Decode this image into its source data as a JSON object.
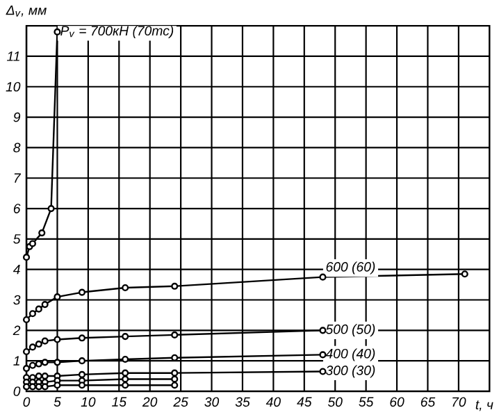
{
  "chart_data": {
    "type": "line",
    "xlabel": "t, ч",
    "ylabel": "Δ$_{v}$, мм",
    "xlim": [
      0,
      75
    ],
    "ylim": [
      0,
      12
    ],
    "xticks": [
      0,
      5,
      10,
      15,
      20,
      25,
      30,
      35,
      40,
      45,
      50,
      55,
      60,
      65,
      70
    ],
    "yticks": [
      0,
      1,
      2,
      3,
      4,
      5,
      6,
      7,
      8,
      9,
      10,
      11
    ],
    "grid": true,
    "marker": "circle",
    "line_style": "solid",
    "series": [
      {
        "name": "Р$_{v}$ = 700кН (70тс)",
        "color": "#000000",
        "x": [
          0,
          0.5,
          1,
          2.5,
          4,
          5
        ],
        "values": [
          4.4,
          4.75,
          4.85,
          5.2,
          6.0,
          11.8
        ]
      },
      {
        "name": "600 (60)",
        "color": "#000000",
        "x": [
          0,
          1,
          2,
          3,
          5,
          9,
          16,
          24,
          48,
          71
        ],
        "values": [
          2.35,
          2.55,
          2.7,
          2.85,
          3.1,
          3.25,
          3.4,
          3.45,
          3.75,
          3.85
        ]
      },
      {
        "name": "500 (50)",
        "color": "#000000",
        "x": [
          0,
          1,
          2,
          3,
          5,
          9,
          16,
          24,
          48
        ],
        "values": [
          1.3,
          1.45,
          1.55,
          1.65,
          1.7,
          1.75,
          1.8,
          1.85,
          2.0
        ]
      },
      {
        "name": "400 (40)",
        "color": "#000000",
        "x": [
          0,
          1,
          2,
          3,
          5,
          9,
          16,
          24,
          48
        ],
        "values": [
          0.75,
          0.85,
          0.9,
          0.95,
          0.95,
          1.0,
          1.05,
          1.1,
          1.2
        ]
      },
      {
        "name": "300 (30)",
        "color": "#000000",
        "x": [
          0,
          1,
          2,
          3,
          5,
          9,
          16,
          24,
          48
        ],
        "values": [
          0.45,
          0.45,
          0.5,
          0.5,
          0.5,
          0.55,
          0.6,
          0.6,
          0.65
        ]
      },
      {
        "color": "#000000",
        "x": [
          0,
          1,
          2,
          3,
          5,
          9,
          16,
          24
        ],
        "values": [
          0.3,
          0.3,
          0.3,
          0.3,
          0.35,
          0.35,
          0.4,
          0.4
        ]
      },
      {
        "color": "#000000",
        "x": [
          0,
          1,
          2,
          3,
          5,
          9,
          16,
          24
        ],
        "values": [
          0.15,
          0.15,
          0.15,
          0.15,
          0.2,
          0.2,
          0.2,
          0.2
        ]
      }
    ]
  }
}
